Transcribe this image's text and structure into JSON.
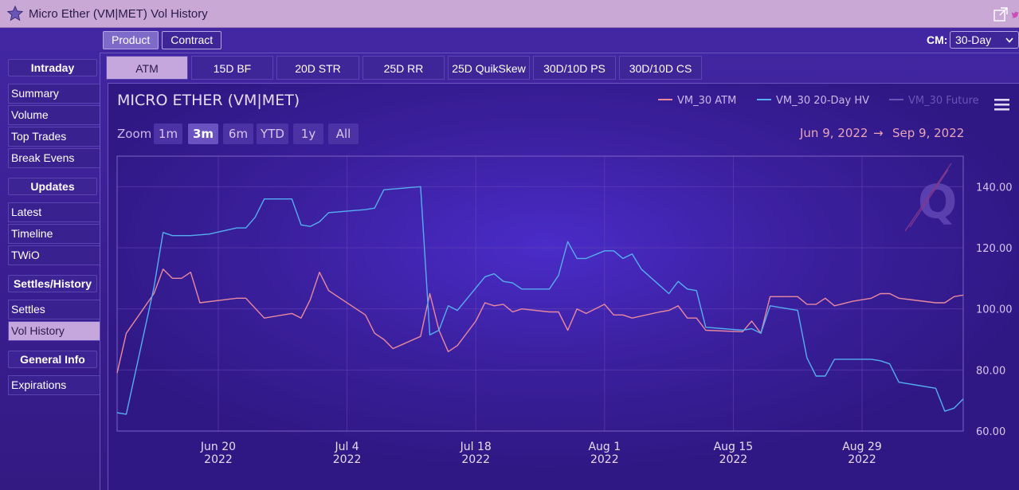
{
  "window": {
    "title": "Micro Ether (VM|MET) Vol History",
    "star_icon": "star-icon",
    "popout_icon": "popout-icon",
    "twitter_icon": "twitter-icon"
  },
  "toggle": {
    "product": "Product",
    "contract": "Contract"
  },
  "cm": {
    "label": "CM:",
    "value": "30-Day"
  },
  "sidebar": {
    "intraday": "Intraday",
    "intraday_items": [
      "Summary",
      "Volume",
      "Top Trades",
      "Break Evens"
    ],
    "updates": "Updates",
    "updates_items": [
      "Latest",
      "Timeline",
      "TWiO"
    ],
    "settles": "Settles/History",
    "settles_items": [
      "Settles",
      "Vol History"
    ],
    "general": "General Info",
    "general_items": [
      "Expirations"
    ]
  },
  "tabs": [
    "ATM",
    "15D BF",
    "20D STR",
    "25D RR",
    "25D QuikSkew",
    "30D/10D PS",
    "30D/10D CS"
  ],
  "chart": {
    "title": "MICRO ETHER (VM|MET)",
    "zoom_label": "Zoom",
    "zoom_buttons": [
      "1m",
      "3m",
      "6m",
      "YTD",
      "1y",
      "All"
    ],
    "zoom_selected": "3m",
    "range_from": "Jun 9, 2022",
    "range_arrow": "→",
    "range_to": "Sep 9, 2022",
    "menu_icon": "hamburger-menu-icon",
    "watermark": "Q",
    "colors": {
      "atm": "#e8899f",
      "hv": "#55aef0",
      "future": "#6b55b8"
    }
  },
  "chart_data": {
    "type": "line",
    "ylim": [
      60,
      150
    ],
    "y_ticks": [
      "60.00",
      "80.00",
      "100.00",
      "120.00",
      "140.00"
    ],
    "x_ticks": [
      {
        "date": "2022-06-20",
        "label": "Jun 20",
        "year": "2022"
      },
      {
        "date": "2022-07-04",
        "label": "Jul 4",
        "year": "2022"
      },
      {
        "date": "2022-07-18",
        "label": "Jul 18",
        "year": "2022"
      },
      {
        "date": "2022-08-01",
        "label": "Aug 1",
        "year": "2022"
      },
      {
        "date": "2022-08-15",
        "label": "Aug 15",
        "year": "2022"
      },
      {
        "date": "2022-08-29",
        "label": "Aug 29",
        "year": "2022"
      }
    ],
    "x_range": [
      "2022-06-09",
      "2022-09-09"
    ],
    "series": [
      {
        "name": "VM_30 ATM",
        "points": [
          [
            "2022-06-09",
            79
          ],
          [
            "2022-06-10",
            92
          ],
          [
            "2022-06-13",
            105
          ],
          [
            "2022-06-14",
            113
          ],
          [
            "2022-06-15",
            110
          ],
          [
            "2022-06-16",
            110
          ],
          [
            "2022-06-17",
            112
          ],
          [
            "2022-06-18",
            102
          ],
          [
            "2022-06-22",
            103.5
          ],
          [
            "2022-06-23",
            103.5
          ],
          [
            "2022-06-25",
            97
          ],
          [
            "2022-06-28",
            98.5
          ],
          [
            "2022-06-29",
            97
          ],
          [
            "2022-06-30",
            103
          ],
          [
            "2022-07-01",
            112
          ],
          [
            "2022-07-02",
            106
          ],
          [
            "2022-07-05",
            100
          ],
          [
            "2022-07-06",
            98
          ],
          [
            "2022-07-07",
            92
          ],
          [
            "2022-07-08",
            90
          ],
          [
            "2022-07-09",
            87
          ],
          [
            "2022-07-12",
            91
          ],
          [
            "2022-07-13",
            105
          ],
          [
            "2022-07-14",
            93
          ],
          [
            "2022-07-15",
            86
          ],
          [
            "2022-07-16",
            88
          ],
          [
            "2022-07-18",
            96
          ],
          [
            "2022-07-19",
            102
          ],
          [
            "2022-07-20",
            101
          ],
          [
            "2022-07-21",
            101.5
          ],
          [
            "2022-07-22",
            99
          ],
          [
            "2022-07-23",
            100
          ],
          [
            "2022-07-26",
            99
          ],
          [
            "2022-07-27",
            99
          ],
          [
            "2022-07-28",
            93
          ],
          [
            "2022-07-29",
            100
          ],
          [
            "2022-07-30",
            98.5
          ],
          [
            "2022-08-01",
            101.5
          ],
          [
            "2022-08-02",
            98
          ],
          [
            "2022-08-03",
            98
          ],
          [
            "2022-08-04",
            97
          ],
          [
            "2022-08-07",
            99
          ],
          [
            "2022-08-08",
            99.5
          ],
          [
            "2022-08-09",
            101
          ],
          [
            "2022-08-10",
            97
          ],
          [
            "2022-08-11",
            97
          ],
          [
            "2022-08-12",
            93
          ],
          [
            "2022-08-16",
            92.5
          ],
          [
            "2022-08-17",
            96
          ],
          [
            "2022-08-18",
            92
          ],
          [
            "2022-08-19",
            104
          ],
          [
            "2022-08-22",
            104
          ],
          [
            "2022-08-23",
            101.5
          ],
          [
            "2022-08-24",
            101.5
          ],
          [
            "2022-08-25",
            103.5
          ],
          [
            "2022-08-26",
            101
          ],
          [
            "2022-08-28",
            102.5
          ],
          [
            "2022-08-30",
            103.5
          ],
          [
            "2022-08-31",
            105
          ],
          [
            "2022-09-01",
            105
          ],
          [
            "2022-09-02",
            103.5
          ],
          [
            "2022-09-06",
            102
          ],
          [
            "2022-09-07",
            102
          ],
          [
            "2022-09-08",
            104
          ],
          [
            "2022-09-09",
            104.5
          ]
        ]
      },
      {
        "name": "VM_30 20-Day HV",
        "points": [
          [
            "2022-06-09",
            66
          ],
          [
            "2022-06-10",
            65.5
          ],
          [
            "2022-06-13",
            107
          ],
          [
            "2022-06-14",
            125
          ],
          [
            "2022-06-15",
            124
          ],
          [
            "2022-06-17",
            124
          ],
          [
            "2022-06-19",
            124.5
          ],
          [
            "2022-06-22",
            126.5
          ],
          [
            "2022-06-23",
            126.5
          ],
          [
            "2022-06-24",
            130
          ],
          [
            "2022-06-25",
            136
          ],
          [
            "2022-06-28",
            136
          ],
          [
            "2022-06-29",
            127.5
          ],
          [
            "2022-06-30",
            127
          ],
          [
            "2022-07-01",
            128.5
          ],
          [
            "2022-07-02",
            131.5
          ],
          [
            "2022-07-06",
            132.5
          ],
          [
            "2022-07-07",
            133
          ],
          [
            "2022-07-08",
            139
          ],
          [
            "2022-07-12",
            140
          ],
          [
            "2022-07-13",
            91.5
          ],
          [
            "2022-07-14",
            93
          ],
          [
            "2022-07-15",
            101
          ],
          [
            "2022-07-16",
            99.5
          ],
          [
            "2022-07-19",
            110.5
          ],
          [
            "2022-07-20",
            111.5
          ],
          [
            "2022-07-21",
            109
          ],
          [
            "2022-07-22",
            108.5
          ],
          [
            "2022-07-23",
            106.5
          ],
          [
            "2022-07-26",
            106.5
          ],
          [
            "2022-07-27",
            111
          ],
          [
            "2022-07-28",
            122
          ],
          [
            "2022-07-29",
            116.5
          ],
          [
            "2022-07-30",
            116.5
          ],
          [
            "2022-08-01",
            119
          ],
          [
            "2022-08-02",
            119
          ],
          [
            "2022-08-03",
            116.5
          ],
          [
            "2022-08-04",
            118
          ],
          [
            "2022-08-05",
            113
          ],
          [
            "2022-08-08",
            105
          ],
          [
            "2022-08-09",
            109
          ],
          [
            "2022-08-10",
            106.5
          ],
          [
            "2022-08-11",
            106
          ],
          [
            "2022-08-12",
            94
          ],
          [
            "2022-08-16",
            93
          ],
          [
            "2022-08-17",
            93.5
          ],
          [
            "2022-08-18",
            92
          ],
          [
            "2022-08-19",
            101
          ],
          [
            "2022-08-22",
            99.5
          ],
          [
            "2022-08-23",
            84
          ],
          [
            "2022-08-24",
            78
          ],
          [
            "2022-08-25",
            78
          ],
          [
            "2022-08-26",
            83.5
          ],
          [
            "2022-08-30",
            83.5
          ],
          [
            "2022-08-31",
            83
          ],
          [
            "2022-09-01",
            82
          ],
          [
            "2022-09-02",
            76
          ],
          [
            "2022-09-06",
            74
          ],
          [
            "2022-09-07",
            66.5
          ],
          [
            "2022-09-08",
            67.5
          ],
          [
            "2022-09-09",
            70.5
          ]
        ]
      },
      {
        "name": "VM_30 Future",
        "points": []
      }
    ]
  }
}
